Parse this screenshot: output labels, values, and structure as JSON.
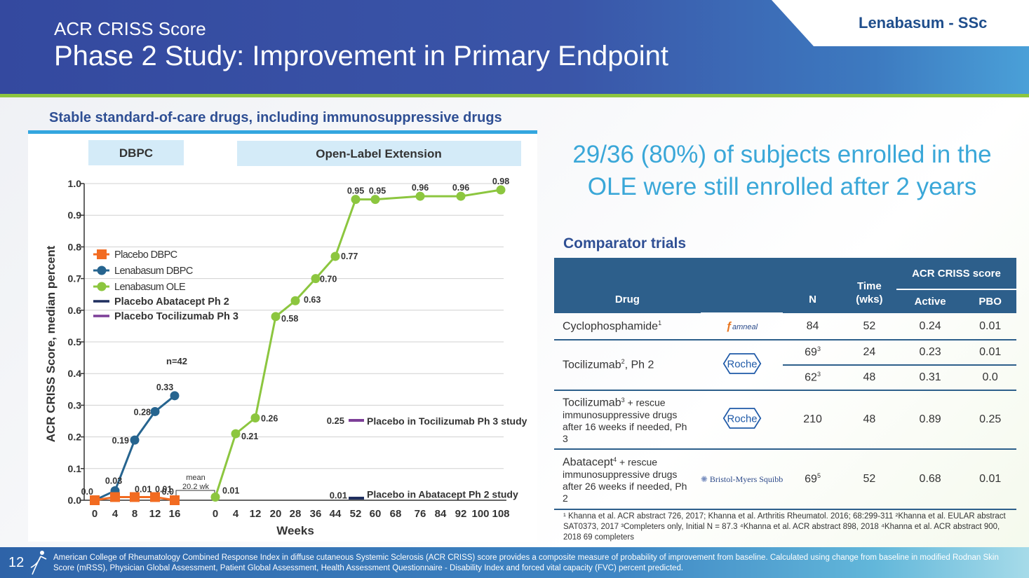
{
  "header": {
    "subtitle": "ACR CRISS Score",
    "title": "Phase 2 Study: Improvement in Primary Endpoint",
    "brand": "Lenabasum - SSc"
  },
  "chart_caption": "Stable standard-of-care drugs, including immunosuppressive drugs",
  "chart_data": {
    "type": "line",
    "ylabel": "ACR CRISS Score, median percent",
    "xlabel": "Weeks",
    "ylim": [
      0,
      1.0
    ],
    "yticks": [
      "0.0",
      "0.1",
      "0.2",
      "0.3",
      "0.4",
      "0.5",
      "0.6",
      "0.7",
      "0.8",
      "0.9",
      "1.0"
    ],
    "grid": true,
    "legend_position": "left",
    "phase_labels": [
      "DBPC",
      "Open-Label Extension"
    ],
    "dbpc_x": [
      "0",
      "4",
      "8",
      "12",
      "16"
    ],
    "ole_x": [
      "0",
      "4",
      "12",
      "20",
      "28",
      "36",
      "44",
      "52",
      "60",
      "68",
      "76",
      "84",
      "92",
      "100",
      "108"
    ],
    "series": [
      {
        "name": "Placebo DBPC",
        "color": "#f26b21",
        "marker": "square",
        "phase": "DBPC",
        "x": [
          "0",
          "4",
          "8",
          "12",
          "16"
        ],
        "values": [
          0.0,
          0.01,
          0.01,
          0.01,
          0.0
        ],
        "labels": [
          "0.0",
          "",
          "0.01",
          "0.01",
          "0.0"
        ]
      },
      {
        "name": "Lenabasum DBPC",
        "color": "#26648f",
        "marker": "circle",
        "phase": "DBPC",
        "x": [
          "0",
          "4",
          "8",
          "12",
          "16"
        ],
        "values": [
          0.0,
          0.03,
          0.19,
          0.28,
          0.33
        ],
        "labels": [
          "",
          "0.03",
          "0.19",
          "0.28",
          "0.33"
        ]
      },
      {
        "name": "Lenabasum OLE",
        "color": "#8cc63f",
        "marker": "circle",
        "phase": "OLE",
        "x": [
          "0",
          "4",
          "12",
          "20",
          "28",
          "36",
          "44",
          "52",
          "60",
          "76",
          "92",
          "108"
        ],
        "values": [
          0.01,
          0.21,
          0.26,
          0.58,
          0.63,
          0.7,
          0.77,
          0.95,
          0.95,
          0.96,
          0.96,
          0.98
        ],
        "labels": [
          "0.01",
          "0.21",
          "0.26",
          "0.58",
          "0.63",
          "0.70",
          "0.77",
          "0.95",
          "0.95",
          "0.96",
          "0.96",
          "0.98"
        ]
      },
      {
        "name": "Placebo Abatacept Ph 2",
        "color": "#1f2f5f",
        "marker": "line",
        "value": 0.01,
        "value_label": "0.01",
        "annotation": "Placebo in Abatacept Ph 2 study"
      },
      {
        "name": "Placebo Tocilizumab Ph 3",
        "color": "#7d3f98",
        "marker": "line",
        "value": 0.25,
        "value_label": "0.25",
        "annotation": "Placebo in Tocilizumab Ph 3 study"
      }
    ],
    "annotations": {
      "n": "n=42",
      "mean_line1": "mean",
      "mean_line2": "20.2 wk"
    }
  },
  "headline": "29/36 (80%) of subjects enrolled in the OLE were still enrolled after 2 years",
  "comparator": {
    "title": "Comparator trials",
    "headers": {
      "drug": "Drug",
      "n": "N",
      "time": "Time (wks)",
      "score": "ACR CRISS score",
      "active": "Active",
      "pbo": "PBO"
    },
    "rows": [
      {
        "drug": "Cyclophosphamide",
        "sup": "1",
        "logo": "amneal",
        "logo_text": "amneal",
        "n": "84",
        "n_sup": "",
        "time": "52",
        "active": "0.24",
        "pbo": "0.01"
      },
      {
        "drug": "Tocilizumab",
        "sup": "2",
        "drug_suffix": ", Ph 2",
        "logo": "roche",
        "logo_text": "Roche",
        "n": "69",
        "n_sup": "3",
        "time": "24",
        "active": "0.23",
        "pbo": "0.01"
      },
      {
        "n": "62",
        "n_sup": "3",
        "time": "48",
        "active": "0.31",
        "pbo": "0.0"
      },
      {
        "drug": "Tocilizumab",
        "sup": "3",
        "drug_suffix": " + rescue immunosuppressive drugs after 16 weeks if needed, Ph 3",
        "logo": "roche",
        "logo_text": "Roche",
        "n": "210",
        "n_sup": "",
        "time": "48",
        "active": "0.89",
        "pbo": "0.25"
      },
      {
        "drug": "Abatacept",
        "sup": "4",
        "drug_suffix": " + rescue immunosuppressive drugs after 26 weeks if needed, Ph 2",
        "logo": "bms",
        "logo_text": "Bristol-Myers Squibb",
        "n": "69",
        "n_sup": "5",
        "time": "52",
        "active": "0.68",
        "pbo": "0.01"
      }
    ],
    "footnotes": "¹ Khanna et al. ACR abstract 726, 2017; Khanna et al. Arthritis Rheumatol. 2016; 68:299-311 ²Khanna et al. EULAR abstract SAT0373, 2017 ³Completers only, Initial N = 87.3 ⁴Khanna et al. ACR abstract 898, 2018 ⁴Khanna et al. ACR abstract 900, 2018  69 completers"
  },
  "footer": {
    "page_number": "12",
    "text": "American College of Rheumatology Combined Response Index in diffuse cutaneous Systemic Sclerosis (ACR CRISS) score provides a composite measure of probability of improvement from baseline. Calculated using change from baseline in modified Rodnan Skin Score (mRSS), Physician Global Assessment, Patient Global Assessment, Health Assessment Questionnaire - Disability Index and forced vital capacity (FVC) percent predicted."
  }
}
